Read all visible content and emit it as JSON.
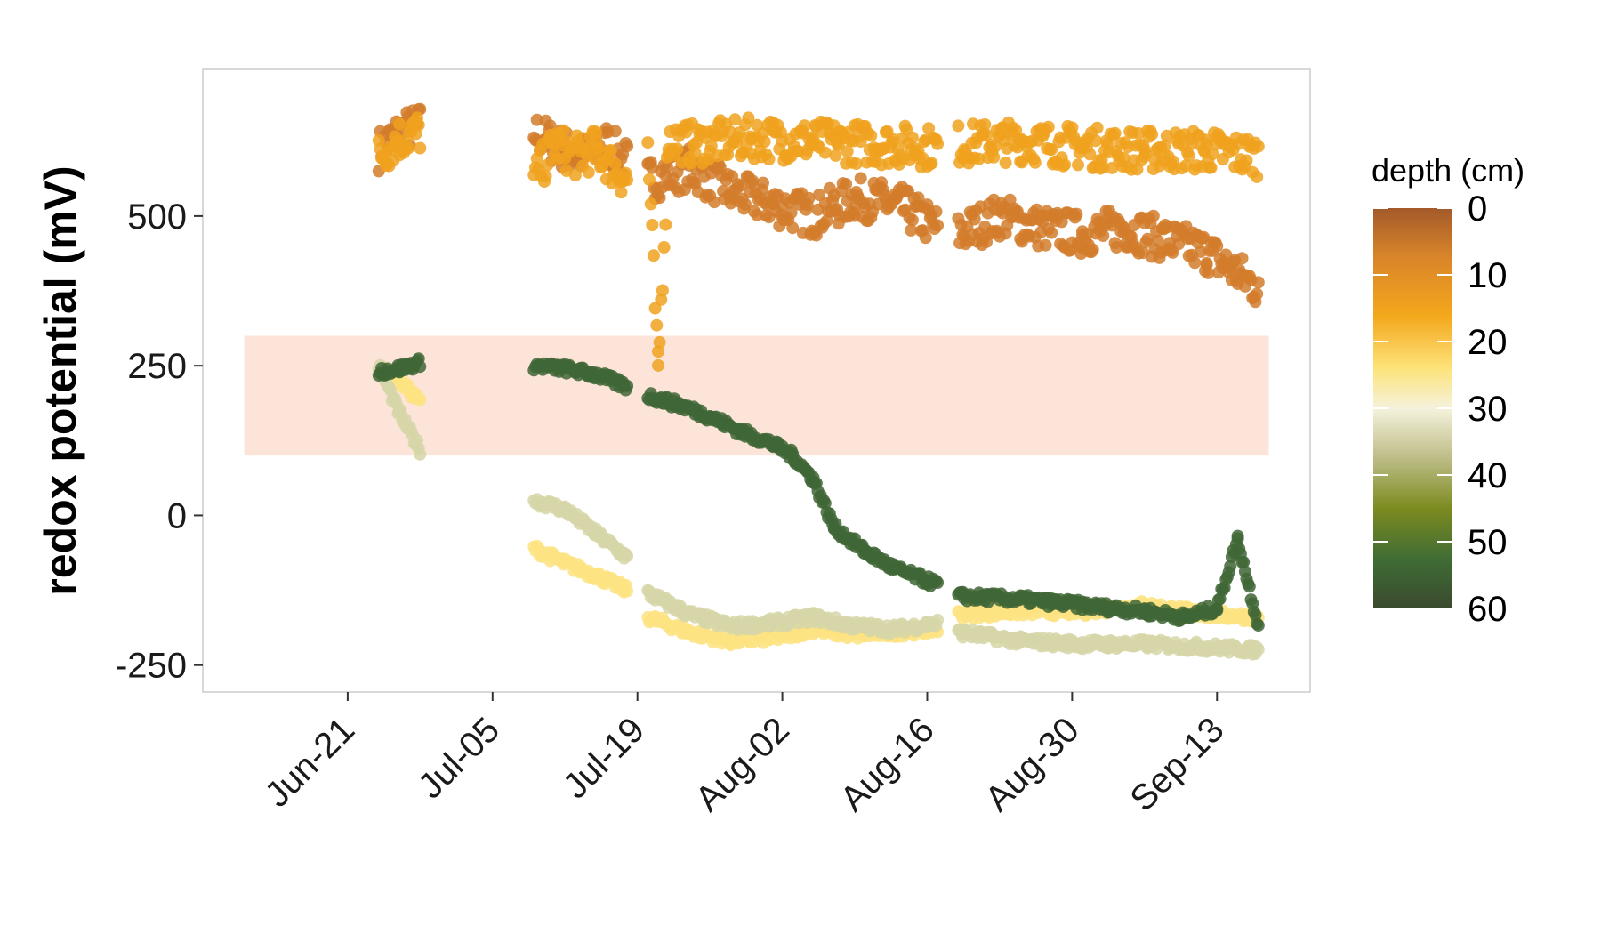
{
  "chart_data": {
    "type": "scatter",
    "title": "",
    "xlabel": "",
    "ylabel": "redox potential (mV)",
    "x_ticks": [
      "Jun-21",
      "Jul-05",
      "Jul-19",
      "Aug-02",
      "Aug-16",
      "Aug-30",
      "Sep-13"
    ],
    "y_ticks": [
      "-250",
      "0",
      "250",
      "500"
    ],
    "y_tick_values": [
      -250,
      0,
      250,
      500
    ],
    "xlim": [
      "2021-06-07",
      "2021-09-22"
    ],
    "ylim": [
      -295,
      745
    ],
    "grid": false,
    "shaded_band": {
      "y_from": 100,
      "y_to": 300,
      "x_from": "2021-06-11",
      "x_to": "2021-09-18",
      "color": "#fde4d9"
    },
    "legend": {
      "title": "depth (cm)",
      "placement": "right",
      "labels": [
        "0",
        "10",
        "20",
        "30",
        "40",
        "50",
        "60"
      ],
      "values": [
        0,
        10,
        20,
        30,
        40,
        50,
        60
      ],
      "colorscale": [
        "#a35a2a",
        "#d8842a",
        "#f4a81c",
        "#fde37a",
        "#f5f2dc",
        "#bfbf8a",
        "#7d8b20",
        "#3e6b35",
        "#3b4a2e"
      ]
    },
    "series": [
      {
        "depth": 5,
        "color": "#d27d2c",
        "segments": [
          {
            "x": [
              "2021-06-24",
              "2021-06-26",
              "2021-06-28"
            ],
            "y": [
              610,
              640,
              650
            ]
          },
          {
            "x": [
              "2021-07-09",
              "2021-07-12",
              "2021-07-14",
              "2021-07-16",
              "2021-07-18"
            ],
            "y": [
              640,
              610,
              600,
              620,
              590
            ]
          },
          {
            "x": [
              "2021-07-20",
              "2021-07-24",
              "2021-07-28",
              "2021-08-01",
              "2021-08-05",
              "2021-08-09",
              "2021-08-13",
              "2021-08-17"
            ],
            "y": [
              560,
              580,
              540,
              520,
              500,
              530,
              520,
              480
            ]
          },
          {
            "x": [
              "2021-08-19",
              "2021-08-23",
              "2021-08-27",
              "2021-08-31",
              "2021-09-04",
              "2021-09-08",
              "2021-09-12",
              "2021-09-17"
            ],
            "y": [
              470,
              500,
              480,
              470,
              480,
              460,
              440,
              380
            ]
          }
        ]
      },
      {
        "depth": 12,
        "color": "#f0a21e",
        "segments": [
          {
            "x": [
              "2021-06-24",
              "2021-06-26",
              "2021-06-28"
            ],
            "y": [
              600,
              630,
              640
            ]
          },
          {
            "x": [
              "2021-07-09",
              "2021-07-11",
              "2021-07-13",
              "2021-07-15",
              "2021-07-18"
            ],
            "y": [
              560,
              620,
              600,
              610,
              560
            ]
          },
          {
            "x": [
              "2021-07-20",
              "2021-07-21",
              "2021-07-22",
              "2021-07-24",
              "2021-07-30",
              "2021-08-05",
              "2021-08-11",
              "2021-08-17"
            ],
            "y": [
              620,
              240,
              630,
              620,
              630,
              625,
              620,
              615
            ]
          },
          {
            "x": [
              "2021-08-19",
              "2021-08-25",
              "2021-08-31",
              "2021-09-06",
              "2021-09-12",
              "2021-09-17"
            ],
            "y": [
              620,
              625,
              615,
              610,
              610,
              600
            ]
          }
        ]
      },
      {
        "depth": 25,
        "color": "#fde383",
        "segments": [
          {
            "x": [
              "2021-06-24",
              "2021-06-26",
              "2021-06-28"
            ],
            "y": [
              245,
              225,
              190
            ]
          },
          {
            "x": [
              "2021-07-09",
              "2021-07-12",
              "2021-07-15",
              "2021-07-18"
            ],
            "y": [
              -55,
              -80,
              -100,
              -125
            ]
          },
          {
            "x": [
              "2021-07-20",
              "2021-07-24",
              "2021-07-28",
              "2021-08-01",
              "2021-08-05",
              "2021-08-09",
              "2021-08-13",
              "2021-08-17"
            ],
            "y": [
              -170,
              -195,
              -210,
              -205,
              -190,
              -200,
              -195,
              -190
            ]
          },
          {
            "x": [
              "2021-08-19",
              "2021-08-25",
              "2021-08-31",
              "2021-09-06",
              "2021-09-12",
              "2021-09-17"
            ],
            "y": [
              -165,
              -160,
              -160,
              -150,
              -165,
              -170
            ]
          }
        ]
      },
      {
        "depth": 35,
        "color": "#d6d6a8",
        "segments": [
          {
            "x": [
              "2021-06-24",
              "2021-06-26",
              "2021-06-28"
            ],
            "y": [
              250,
              170,
              110
            ]
          },
          {
            "x": [
              "2021-07-09",
              "2021-07-12",
              "2021-07-15",
              "2021-07-18"
            ],
            "y": [
              25,
              10,
              -30,
              -70
            ]
          },
          {
            "x": [
              "2021-07-20",
              "2021-07-24",
              "2021-07-28",
              "2021-08-01",
              "2021-08-05",
              "2021-08-09",
              "2021-08-13",
              "2021-08-17"
            ],
            "y": [
              -130,
              -165,
              -185,
              -180,
              -170,
              -185,
              -190,
              -180
            ]
          },
          {
            "x": [
              "2021-08-19",
              "2021-08-25",
              "2021-08-31",
              "2021-09-06",
              "2021-09-12",
              "2021-09-17"
            ],
            "y": [
              -195,
              -210,
              -215,
              -215,
              -220,
              -225
            ]
          }
        ]
      },
      {
        "depth": 55,
        "color": "#3f6636",
        "segments": [
          {
            "x": [
              "2021-06-24",
              "2021-06-26",
              "2021-06-28"
            ],
            "y": [
              240,
              245,
              255
            ]
          },
          {
            "x": [
              "2021-07-09",
              "2021-07-12",
              "2021-07-15",
              "2021-07-18"
            ],
            "y": [
              250,
              245,
              235,
              215
            ]
          },
          {
            "x": [
              "2021-07-20",
              "2021-07-23",
              "2021-07-26",
              "2021-07-29",
              "2021-08-01",
              "2021-08-03",
              "2021-08-05",
              "2021-08-07",
              "2021-08-10",
              "2021-08-13",
              "2021-08-17"
            ],
            "y": [
              200,
              185,
              165,
              140,
              120,
              100,
              60,
              -20,
              -60,
              -90,
              -115
            ]
          },
          {
            "x": [
              "2021-08-19",
              "2021-08-25",
              "2021-08-31",
              "2021-09-06",
              "2021-09-10",
              "2021-09-13",
              "2021-09-15",
              "2021-09-17"
            ],
            "y": [
              -135,
              -140,
              -150,
              -160,
              -170,
              -155,
              -40,
              -185
            ]
          }
        ]
      }
    ]
  }
}
